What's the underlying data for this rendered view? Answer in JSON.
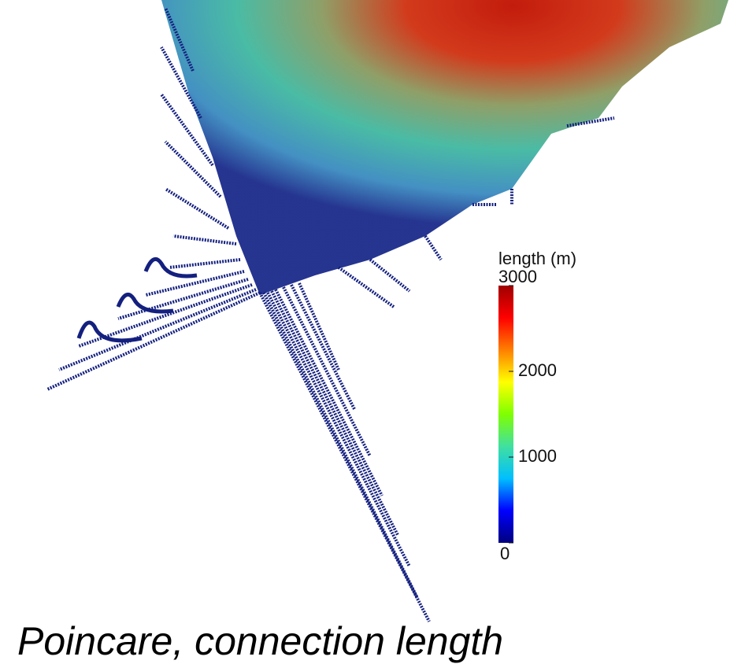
{
  "colorbar": {
    "title": "length (m)",
    "lim": [
      0,
      3000
    ],
    "ticks": [
      0,
      1000,
      2000,
      3000
    ],
    "colors": [
      "#00007f",
      "#0000ff",
      "#00bfff",
      "#40e0a0",
      "#7fff00",
      "#ffff00",
      "#ff7f00",
      "#ff0000",
      "#9f0000"
    ]
  },
  "caption": "Poincare, connection length"
}
